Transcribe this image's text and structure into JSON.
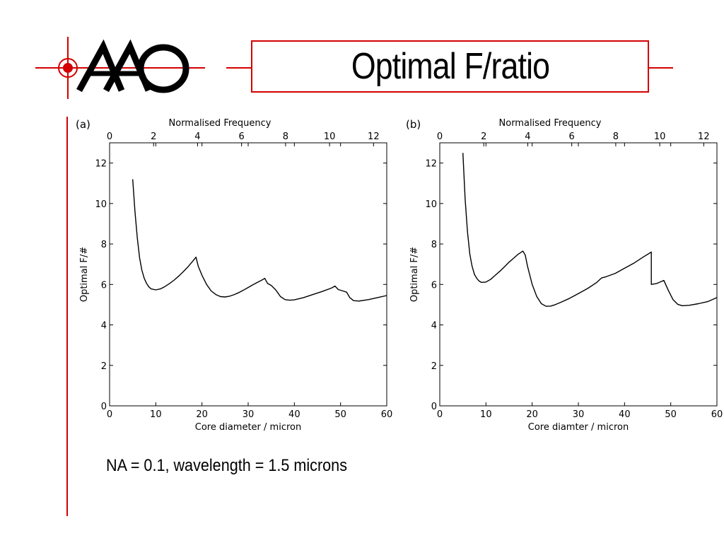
{
  "slide": {
    "title": "Optimal F/ratio",
    "caption": "NA = 0.1, wavelength = 1.5 microns",
    "accent_color": "#d40000",
    "logo": {
      "name": "AAO",
      "icon": "crosshair-icon"
    }
  },
  "chart_data": [
    {
      "type": "line",
      "panel_label": "(a)",
      "xlabel": "Core diameter / micron",
      "ylabel": "Optimal F/#",
      "top_xlabel": "Normalised Frequency",
      "xlim": [
        0,
        60
      ],
      "ylim": [
        0,
        13
      ],
      "top_xlim": [
        0,
        12.6
      ],
      "xticks": [
        0,
        10,
        20,
        30,
        40,
        50,
        60
      ],
      "yticks": [
        0,
        2,
        4,
        6,
        8,
        10,
        12
      ],
      "top_xticks": [
        0,
        2,
        4,
        6,
        8,
        10,
        12
      ],
      "grid": false,
      "series": [
        {
          "x": [
            5,
            5.5,
            6,
            6.5,
            7,
            7.5,
            8,
            8.5,
            9,
            10,
            11,
            12,
            13,
            14,
            15,
            16,
            17,
            18,
            18.7,
            19.2,
            20,
            21,
            22,
            23,
            24,
            25,
            26,
            27,
            28,
            29,
            30,
            31,
            32,
            33,
            33.6,
            34.2,
            35,
            36,
            37,
            38,
            39,
            40,
            42,
            44,
            46,
            48,
            48.8,
            49.5,
            50.5,
            51.3,
            52,
            52.8,
            54,
            56,
            58,
            60
          ],
          "y": [
            11.2,
            9.6,
            8.3,
            7.3,
            6.7,
            6.3,
            6.05,
            5.88,
            5.78,
            5.73,
            5.78,
            5.9,
            6.05,
            6.22,
            6.42,
            6.64,
            6.88,
            7.15,
            7.35,
            6.9,
            6.45,
            6.0,
            5.68,
            5.5,
            5.4,
            5.38,
            5.42,
            5.5,
            5.6,
            5.72,
            5.85,
            5.98,
            6.1,
            6.22,
            6.3,
            6.05,
            5.95,
            5.72,
            5.4,
            5.25,
            5.22,
            5.24,
            5.35,
            5.5,
            5.65,
            5.82,
            5.92,
            5.75,
            5.68,
            5.62,
            5.35,
            5.2,
            5.18,
            5.25,
            5.35,
            5.45
          ]
        }
      ]
    },
    {
      "type": "line",
      "panel_label": "(b)",
      "xlabel": "Core diamter / micron",
      "ylabel": "Optimal F/#",
      "top_xlabel": "Normalised Frequency",
      "xlim": [
        0,
        60
      ],
      "ylim": [
        0,
        13
      ],
      "top_xlim": [
        0,
        12.6
      ],
      "xticks": [
        0,
        10,
        20,
        30,
        40,
        50,
        60
      ],
      "yticks": [
        0,
        2,
        4,
        6,
        8,
        10,
        12
      ],
      "top_xticks": [
        0,
        2,
        4,
        6,
        8,
        10,
        12
      ],
      "grid": false,
      "series": [
        {
          "x": [
            5,
            5.5,
            6,
            6.5,
            7,
            7.5,
            8,
            8.5,
            9,
            10,
            11,
            12,
            13,
            14,
            15,
            16,
            17,
            18,
            18.5,
            19,
            20,
            21,
            22,
            23,
            24,
            25,
            26,
            28,
            30,
            32,
            34,
            35,
            36,
            38,
            40,
            42,
            44,
            45.8,
            45.8,
            47,
            48.5,
            49.5,
            50.5,
            51.5,
            52.5,
            54,
            56,
            58,
            60
          ],
          "y": [
            12.5,
            10.2,
            8.6,
            7.5,
            6.9,
            6.5,
            6.3,
            6.17,
            6.1,
            6.12,
            6.25,
            6.45,
            6.65,
            6.87,
            7.1,
            7.3,
            7.5,
            7.65,
            7.45,
            6.9,
            6.0,
            5.4,
            5.05,
            4.92,
            4.93,
            5.0,
            5.1,
            5.3,
            5.55,
            5.8,
            6.1,
            6.32,
            6.38,
            6.55,
            6.8,
            7.05,
            7.35,
            7.6,
            6.0,
            6.05,
            6.2,
            5.7,
            5.25,
            5.02,
            4.95,
            4.97,
            5.05,
            5.15,
            5.35
          ]
        }
      ]
    }
  ]
}
